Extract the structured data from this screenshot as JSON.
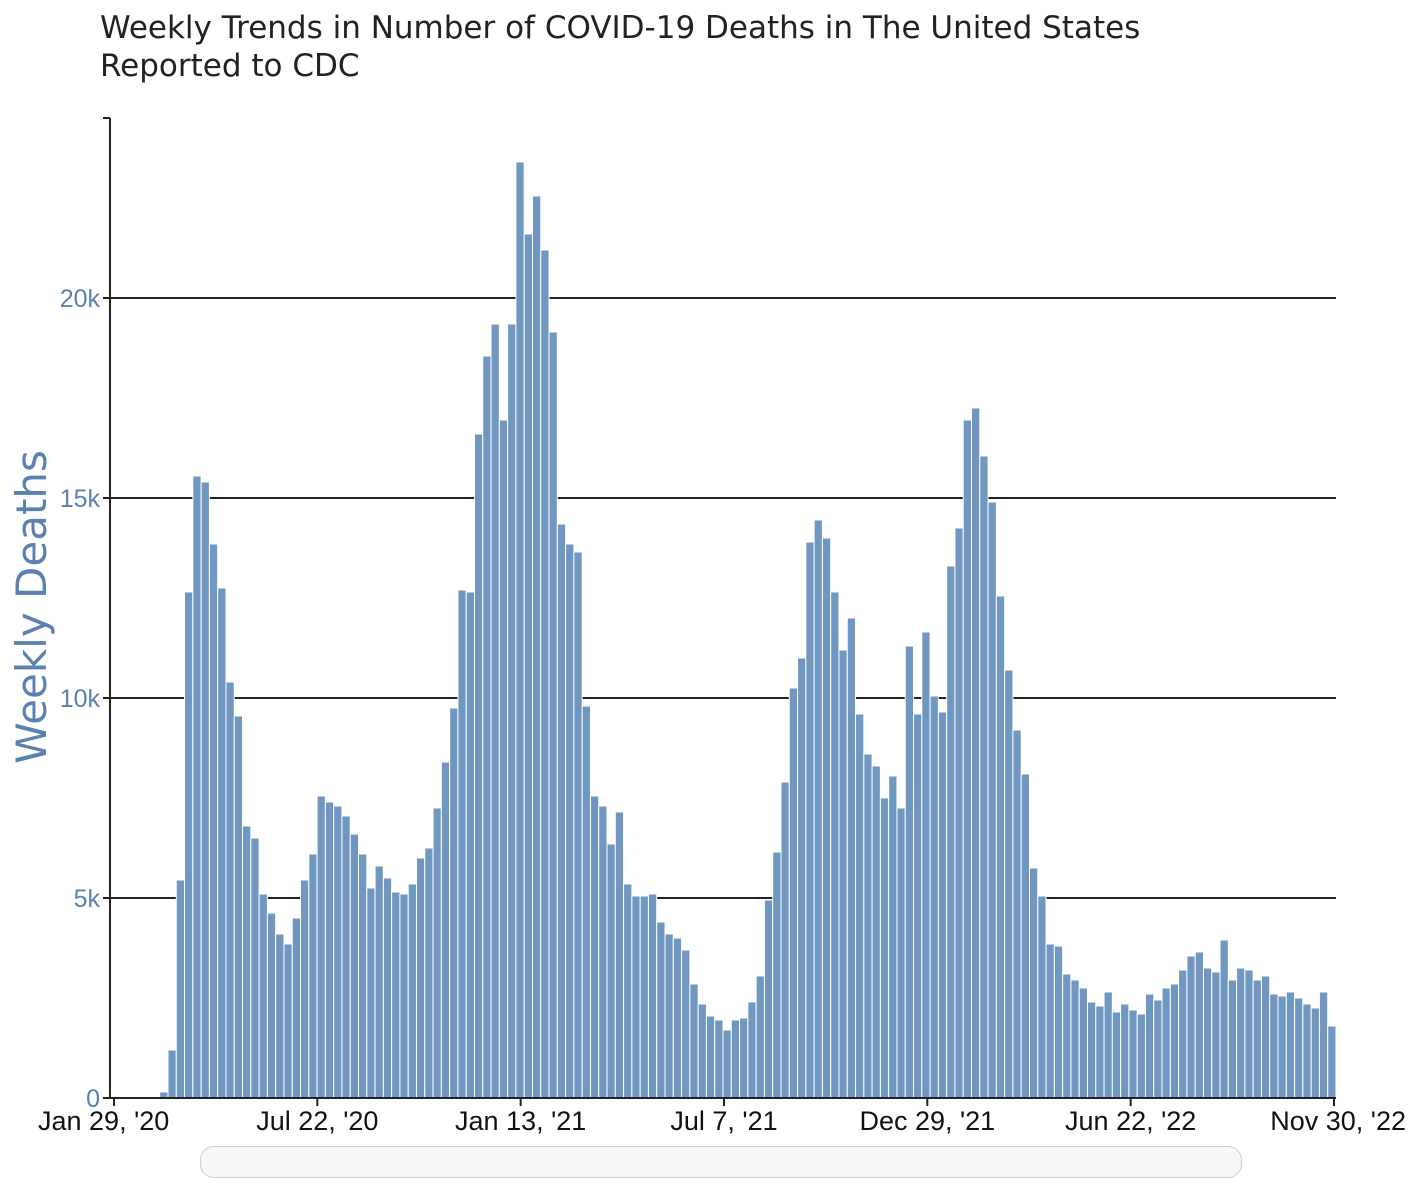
{
  "colors": {
    "bar": "#7097c0",
    "axis_label": "#5a82b0",
    "title": "#222222",
    "grid": "#222222"
  },
  "chart_data": {
    "type": "bar",
    "title": "Weekly Trends in Number of COVID-19 Deaths in The United States",
    "subtitle": "Reported to CDC",
    "xlabel": "",
    "ylabel": "Weekly Deaths",
    "ylim": [
      0,
      24500
    ],
    "yticks": [
      0,
      5000,
      10000,
      15000,
      20000
    ],
    "ytick_labels": [
      "0",
      "5k",
      "10k",
      "15k",
      "20k"
    ],
    "xtick_labels": [
      "Jan 29, '20",
      "Jul 22, '20",
      "Jan 13, '21",
      "Jul 7, '21",
      "Dec 29, '21",
      "Jun 22, '22",
      "Nov 30, '22"
    ],
    "grid": true,
    "legend": "none",
    "x_start": "Jan 29, '20",
    "x_end": "Nov 30, '22",
    "week_interval_days": 7,
    "values": [
      0,
      0,
      0,
      0,
      0,
      0,
      150,
      1200,
      5450,
      12650,
      15550,
      15400,
      13850,
      12750,
      10400,
      9550,
      6800,
      6500,
      5100,
      4620,
      4100,
      3850,
      4500,
      5450,
      6100,
      7550,
      7400,
      7300,
      7050,
      6600,
      6100,
      5250,
      5800,
      5500,
      5150,
      5100,
      5350,
      6000,
      6250,
      7250,
      8400,
      9750,
      12700,
      12650,
      16600,
      18550,
      19350,
      16950,
      19350,
      23400,
      21600,
      22550,
      21200,
      19150,
      14350,
      13850,
      13650,
      9800,
      7550,
      7300,
      6350,
      7150,
      5350,
      5050,
      5050,
      5100,
      4400,
      4100,
      4000,
      3700,
      2850,
      2350,
      2050,
      1950,
      1700,
      1950,
      2000,
      2400,
      3050,
      4950,
      6150,
      7900,
      10250,
      11000,
      13900,
      14450,
      14000,
      12650,
      11200,
      12000,
      9600,
      8600,
      8300,
      7500,
      8050,
      7250,
      11300,
      9600,
      11650,
      10050,
      9650,
      13300,
      14250,
      16950,
      17250,
      16050,
      14900,
      12550,
      10700,
      9200,
      8100,
      5750,
      5050,
      3850,
      3800,
      3100,
      2950,
      2750,
      2400,
      2300,
      2650,
      2150,
      2350,
      2200,
      2100,
      2600,
      2450,
      2750,
      2850,
      3200,
      3550,
      3650,
      3250,
      3150,
      3950,
      2950,
      3250,
      3200,
      2950,
      3050,
      2600,
      2550,
      2650,
      2500,
      2350,
      2250,
      2650,
      1800
    ]
  }
}
